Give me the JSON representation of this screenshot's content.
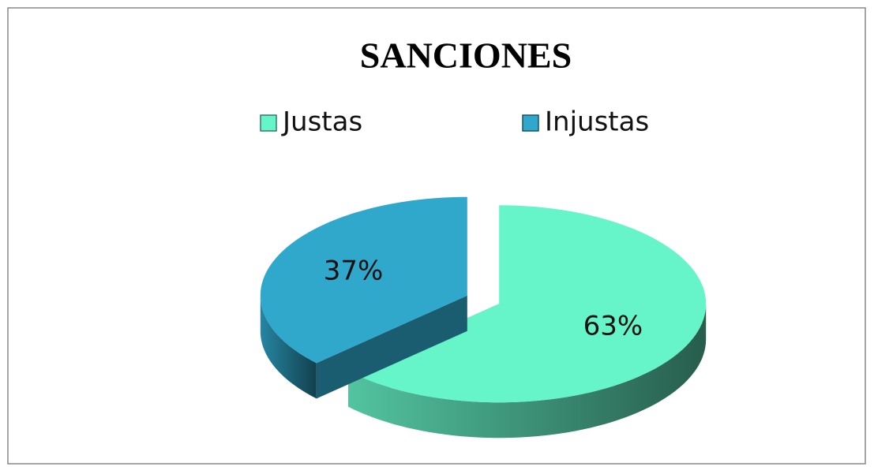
{
  "chart_data": {
    "type": "pie",
    "title": "SANCIONES",
    "categories": [
      "Justas",
      "Injustas"
    ],
    "values": [
      63,
      37
    ],
    "value_labels": [
      "63%",
      "37%"
    ],
    "colors": [
      "#66f5c8",
      "#2fa8cc"
    ],
    "legend": "top"
  }
}
